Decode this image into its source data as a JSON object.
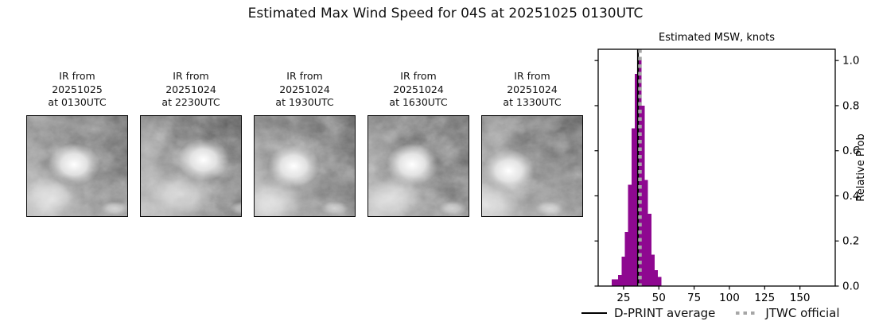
{
  "title": "Estimated Max Wind Speed for 04S at 20251025 0130UTC",
  "ir_panels": [
    {
      "caption_lines": [
        "IR from",
        "20251025",
        "at 0130UTC"
      ]
    },
    {
      "caption_lines": [
        "IR from",
        "20251024",
        "at 2230UTC"
      ]
    },
    {
      "caption_lines": [
        "IR from",
        "20251024",
        "at 1930UTC"
      ]
    },
    {
      "caption_lines": [
        "IR from",
        "20251024",
        "at 1630UTC"
      ]
    },
    {
      "caption_lines": [
        "IR from",
        "20251024",
        "at 1330UTC"
      ]
    }
  ],
  "chart_data": {
    "type": "bar",
    "title": "Estimated MSW, knots",
    "xlabel": "",
    "ylabel": "Relative Prob",
    "xlim": [
      7,
      175
    ],
    "ylim": [
      0,
      1.05
    ],
    "xticks": [
      25,
      50,
      75,
      100,
      125,
      150
    ],
    "yticks": [
      0.0,
      0.2,
      0.4,
      0.6,
      0.8,
      1.0
    ],
    "grid": false,
    "bin_start_knots": 16.5,
    "bin_width_knots": 2.35,
    "bin_rel_probs": [
      0.03,
      0.03,
      0.05,
      0.13,
      0.24,
      0.45,
      0.7,
      0.94,
      1.0,
      0.8,
      0.47,
      0.32,
      0.14,
      0.07,
      0.04
    ],
    "bar_color": "#8e0890",
    "dprint_average_knots": 35.2,
    "jtwc_official_knots": 36.6,
    "line_color_average": "#000000",
    "line_color_jtwc": "#a6a6a6",
    "legend_position": "below",
    "legend": [
      {
        "label": "D-PRINT average",
        "style": "solid",
        "color": "#000000"
      },
      {
        "label": "JTWC official",
        "style": "dotted",
        "color": "#a6a6a6"
      }
    ]
  }
}
